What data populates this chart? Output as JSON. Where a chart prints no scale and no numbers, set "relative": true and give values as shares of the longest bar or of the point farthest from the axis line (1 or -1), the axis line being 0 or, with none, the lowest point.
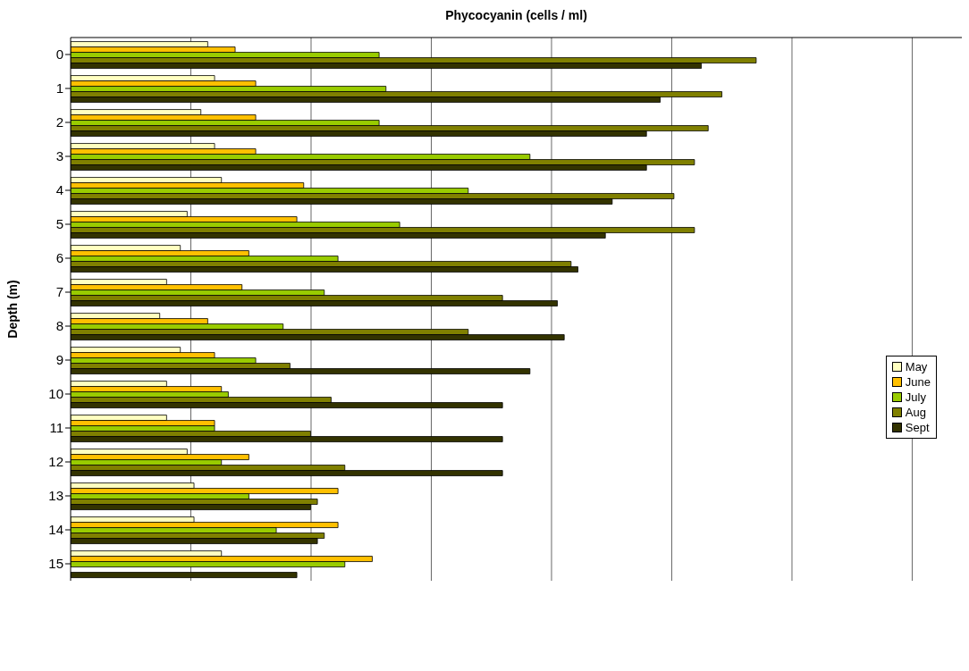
{
  "chart_data": {
    "type": "bar",
    "orientation": "horizontal",
    "relative": true,
    "xlabel": "Phycocyanin (cells / ml)",
    "ylabel": "Depth (m)",
    "grid": "x",
    "legend": "right",
    "categories": [
      "0",
      "1",
      "2",
      "3",
      "4",
      "5",
      "6",
      "7",
      "8",
      "9",
      "10",
      "11",
      "12",
      "13",
      "14",
      "15"
    ],
    "series": [
      {
        "name": "May",
        "color": "#ffffc0",
        "values": [
          0.2,
          0.21,
          0.19,
          0.21,
          0.22,
          0.17,
          0.16,
          0.14,
          0.13,
          0.16,
          0.14,
          0.14,
          0.17,
          0.18,
          0.18,
          0.22
        ]
      },
      {
        "name": "June",
        "color": "#ffc000",
        "values": [
          0.24,
          0.27,
          0.27,
          0.27,
          0.34,
          0.33,
          0.26,
          0.25,
          0.2,
          0.21,
          0.22,
          0.21,
          0.26,
          0.39,
          0.39,
          0.44
        ]
      },
      {
        "name": "July",
        "color": "#99cc00",
        "values": [
          0.45,
          0.46,
          0.45,
          0.67,
          0.58,
          0.48,
          0.39,
          0.37,
          0.31,
          0.27,
          0.23,
          0.21,
          0.22,
          0.26,
          0.3,
          0.4
        ]
      },
      {
        "name": "Aug",
        "color": "#808000",
        "values": [
          1.0,
          0.95,
          0.93,
          0.91,
          0.88,
          0.91,
          0.73,
          0.63,
          0.58,
          0.32,
          0.38,
          0.35,
          0.4,
          0.36,
          0.37,
          null
        ]
      },
      {
        "name": "Sept",
        "color": "#333300",
        "values": [
          0.92,
          0.86,
          0.84,
          0.84,
          0.79,
          0.78,
          0.74,
          0.71,
          0.72,
          0.67,
          0.63,
          0.63,
          0.63,
          0.35,
          0.36,
          0.33
        ]
      }
    ]
  }
}
